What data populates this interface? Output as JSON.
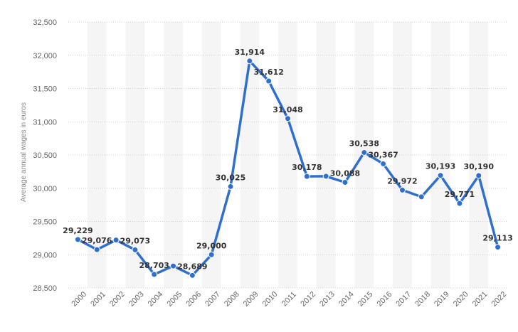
{
  "chart_data": {
    "type": "line",
    "ylabel": "Average annual wages in euros",
    "ylim": [
      28500,
      32500
    ],
    "yticks": [
      28500,
      29000,
      29500,
      30000,
      30500,
      31000,
      31500,
      32000,
      32500
    ],
    "ytick_labels": [
      "28,500",
      "29,000",
      "29,500",
      "30,000",
      "30,500",
      "31,000",
      "31,500",
      "32,000",
      "32,500"
    ],
    "categories": [
      "2000",
      "2001",
      "2002",
      "2003",
      "2004",
      "2005",
      "2006",
      "2007",
      "2008",
      "2009",
      "2010",
      "2011",
      "2012",
      "2013",
      "2014",
      "2015",
      "2016",
      "2017",
      "2018",
      "2019",
      "2020",
      "2021",
      "2022"
    ],
    "values": [
      29229,
      29076,
      29220,
      29073,
      28703,
      28830,
      28689,
      29000,
      30025,
      31914,
      31612,
      31048,
      30178,
      30180,
      30088,
      30538,
      30367,
      29972,
      29870,
      30193,
      29771,
      30190,
      29113
    ],
    "data_labels": [
      "29,229",
      "29,076",
      "",
      "29,073",
      "28,703",
      "",
      "28,689",
      "29,000",
      "30,025",
      "31,914",
      "31,612",
      "31,048",
      "30,178",
      "",
      "30,088",
      "30,538",
      "30,367",
      "29,972",
      "",
      "30,193",
      "29,771",
      "30,190",
      "29,113"
    ],
    "line_color": "#2e6fd0",
    "grid": true,
    "legend": "none"
  }
}
